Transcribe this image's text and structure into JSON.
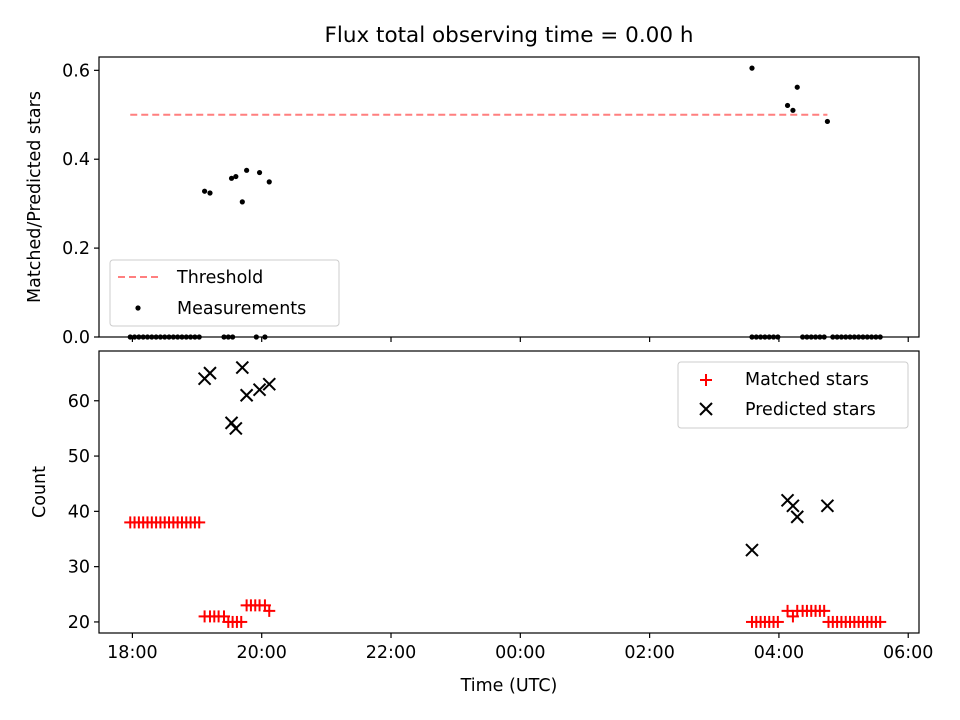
{
  "chart_data": [
    {
      "type": "scatter",
      "title": "Flux total observing time = 0.00 h",
      "ylabel": "Matched/Predicted stars",
      "xlabel": "",
      "xlim": [
        "17:29",
        "06:10"
      ],
      "ylim": [
        0,
        0.63
      ],
      "yticks": [
        0.0,
        0.2,
        0.4,
        0.6
      ],
      "ytick_labels": [
        "0.0",
        "0.2",
        "0.4",
        "0.6"
      ],
      "threshold": {
        "name": "Threshold",
        "value": 0.5,
        "x": [
          "17:58",
          "04:45"
        ],
        "color": "#ff7f7f",
        "style": "dashed"
      },
      "series": [
        {
          "name": "Measurements",
          "marker": "dot",
          "color": "#000000",
          "points": [
            [
              "19:07",
              0.328
            ],
            [
              "19:12",
              0.324
            ],
            [
              "19:32",
              0.357
            ],
            [
              "19:36",
              0.361
            ],
            [
              "19:42",
              0.304
            ],
            [
              "19:46",
              0.375
            ],
            [
              "19:58",
              0.37
            ],
            [
              "20:07",
              0.349
            ],
            [
              "03:35",
              0.605
            ],
            [
              "04:08",
              0.521
            ],
            [
              "04:13",
              0.51
            ],
            [
              "04:17",
              0.562
            ],
            [
              "04:45",
              0.485
            ],
            [
              "17:58",
              0
            ],
            [
              "18:02",
              0
            ],
            [
              "18:06",
              0
            ],
            [
              "18:10",
              0
            ],
            [
              "18:14",
              0
            ],
            [
              "18:18",
              0
            ],
            [
              "18:22",
              0
            ],
            [
              "18:26",
              0
            ],
            [
              "18:30",
              0
            ],
            [
              "18:34",
              0
            ],
            [
              "18:38",
              0
            ],
            [
              "18:42",
              0
            ],
            [
              "18:46",
              0
            ],
            [
              "18:50",
              0
            ],
            [
              "18:54",
              0
            ],
            [
              "18:58",
              0
            ],
            [
              "19:02",
              0
            ],
            [
              "19:25",
              0
            ],
            [
              "19:29",
              0
            ],
            [
              "19:33",
              0
            ],
            [
              "19:55",
              0
            ],
            [
              "20:03",
              0
            ],
            [
              "03:35",
              0
            ],
            [
              "03:39",
              0
            ],
            [
              "03:43",
              0
            ],
            [
              "03:47",
              0
            ],
            [
              "03:51",
              0
            ],
            [
              "03:55",
              0
            ],
            [
              "03:59",
              0
            ],
            [
              "04:22",
              0
            ],
            [
              "04:26",
              0
            ],
            [
              "04:30",
              0
            ],
            [
              "04:34",
              0
            ],
            [
              "04:38",
              0
            ],
            [
              "04:42",
              0
            ],
            [
              "04:50",
              0
            ],
            [
              "04:54",
              0
            ],
            [
              "04:58",
              0
            ],
            [
              "05:02",
              0
            ],
            [
              "05:06",
              0
            ],
            [
              "05:10",
              0
            ],
            [
              "05:14",
              0
            ],
            [
              "05:18",
              0
            ],
            [
              "05:22",
              0
            ],
            [
              "05:26",
              0
            ],
            [
              "05:30",
              0
            ],
            [
              "05:34",
              0
            ]
          ]
        }
      ],
      "legend": {
        "placement": "lower-left",
        "entries": [
          "Threshold",
          "Measurements"
        ]
      }
    },
    {
      "type": "scatter",
      "title": "",
      "ylabel": "Count",
      "xlabel": "Time (UTC)",
      "xlim": [
        "17:29",
        "06:10"
      ],
      "ylim": [
        18,
        69
      ],
      "yticks": [
        20,
        30,
        40,
        50,
        60
      ],
      "ytick_labels": [
        "20",
        "30",
        "40",
        "50",
        "60"
      ],
      "xticks": [
        "18:00",
        "20:00",
        "22:00",
        "00:00",
        "02:00",
        "04:00",
        "06:00"
      ],
      "series": [
        {
          "name": "Matched stars",
          "marker": "plus",
          "color": "#ff0000",
          "points": [
            [
              "17:58",
              38
            ],
            [
              "18:02",
              38
            ],
            [
              "18:06",
              38
            ],
            [
              "18:10",
              38
            ],
            [
              "18:14",
              38
            ],
            [
              "18:18",
              38
            ],
            [
              "18:22",
              38
            ],
            [
              "18:26",
              38
            ],
            [
              "18:30",
              38
            ],
            [
              "18:34",
              38
            ],
            [
              "18:38",
              38
            ],
            [
              "18:42",
              38
            ],
            [
              "18:46",
              38
            ],
            [
              "18:50",
              38
            ],
            [
              "18:54",
              38
            ],
            [
              "18:58",
              38
            ],
            [
              "19:02",
              38
            ],
            [
              "19:07",
              21
            ],
            [
              "19:12",
              21
            ],
            [
              "19:16",
              21
            ],
            [
              "19:20",
              21
            ],
            [
              "19:25",
              21
            ],
            [
              "19:29",
              20
            ],
            [
              "19:33",
              20
            ],
            [
              "19:37",
              20
            ],
            [
              "19:41",
              20
            ],
            [
              "19:46",
              23
            ],
            [
              "19:50",
              23
            ],
            [
              "19:54",
              23
            ],
            [
              "19:58",
              23
            ],
            [
              "20:03",
              23
            ],
            [
              "20:07",
              22
            ],
            [
              "03:35",
              20
            ],
            [
              "03:39",
              20
            ],
            [
              "03:43",
              20
            ],
            [
              "03:47",
              20
            ],
            [
              "03:51",
              20
            ],
            [
              "03:55",
              20
            ],
            [
              "03:59",
              20
            ],
            [
              "04:08",
              22
            ],
            [
              "04:13",
              21
            ],
            [
              "04:17",
              22
            ],
            [
              "04:22",
              22
            ],
            [
              "04:26",
              22
            ],
            [
              "04:30",
              22
            ],
            [
              "04:34",
              22
            ],
            [
              "04:38",
              22
            ],
            [
              "04:42",
              22
            ],
            [
              "04:46",
              20
            ],
            [
              "04:50",
              20
            ],
            [
              "04:54",
              20
            ],
            [
              "04:58",
              20
            ],
            [
              "05:02",
              20
            ],
            [
              "05:06",
              20
            ],
            [
              "05:10",
              20
            ],
            [
              "05:14",
              20
            ],
            [
              "05:18",
              20
            ],
            [
              "05:22",
              20
            ],
            [
              "05:26",
              20
            ],
            [
              "05:30",
              20
            ],
            [
              "05:34",
              20
            ]
          ]
        },
        {
          "name": "Predicted stars",
          "marker": "x",
          "color": "#000000",
          "points": [
            [
              "19:07",
              64
            ],
            [
              "19:12",
              65
            ],
            [
              "19:32",
              56
            ],
            [
              "19:36",
              55
            ],
            [
              "19:42",
              66
            ],
            [
              "19:46",
              61
            ],
            [
              "19:58",
              62
            ],
            [
              "20:07",
              63
            ],
            [
              "03:35",
              33
            ],
            [
              "04:08",
              42
            ],
            [
              "04:13",
              41
            ],
            [
              "04:17",
              39
            ],
            [
              "04:45",
              41
            ]
          ]
        }
      ],
      "legend": {
        "placement": "upper-right",
        "entries": [
          "Matched stars",
          "Predicted stars"
        ]
      }
    }
  ]
}
